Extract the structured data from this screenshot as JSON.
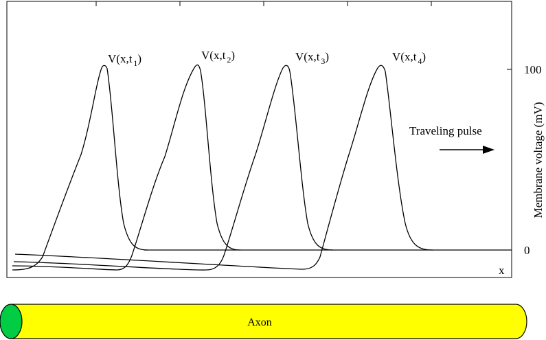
{
  "figure": {
    "pulse_labels": [
      {
        "base": "V(x,t",
        "sub": "1",
        "close": ")"
      },
      {
        "base": "V(x,t",
        "sub": "2",
        "close": ")"
      },
      {
        "base": "V(x,t",
        "sub": "3",
        "close": ")"
      },
      {
        "base": "V(x,t",
        "sub": "4",
        "close": ")"
      }
    ],
    "annotation": "Traveling pulse",
    "y_axis_label": "Membrane voltage (mV)",
    "y_ticks": [
      "100",
      "0"
    ],
    "x_axis_label": "x",
    "axon_label": "Axon",
    "colors": {
      "axon_fill": "#ffff00",
      "axon_end_fill": "#00cc44",
      "stroke": "#000000"
    },
    "icons": {
      "direction": "right-arrow-icon"
    }
  }
}
